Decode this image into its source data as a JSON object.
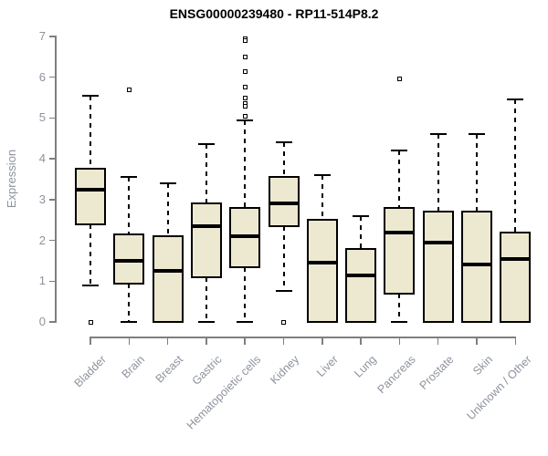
{
  "chart_data": {
    "type": "boxplot",
    "title": "ENSG00000239480 - RP11-514P8.2",
    "ylabel": "Expression",
    "xlabel": "",
    "ylim": [
      0,
      7
    ],
    "yticks": [
      0,
      1,
      2,
      3,
      4,
      5,
      6,
      7
    ],
    "grid": false,
    "legend": null,
    "colors": {
      "box_fill": "#ede8d0",
      "box_border": "#000000",
      "median": "#000000",
      "whisker": "#000000",
      "axis": "#7f7f7f",
      "labels": "#8d939d",
      "title": "#000000"
    },
    "categories": [
      "Bladder",
      "Brain",
      "Breast",
      "Gastric",
      "Hematopoietic cells",
      "Kidney",
      "Liver",
      "Lung",
      "Pancreas",
      "Prostate",
      "Skin",
      "Unknown / Other"
    ],
    "boxes": [
      {
        "category": "Bladder",
        "whisker_low": 0.9,
        "q1": 2.4,
        "median": 3.25,
        "q3": 3.75,
        "whisker_high": 5.55,
        "outliers": [
          0
        ]
      },
      {
        "category": "Brain",
        "whisker_low": 0,
        "q1": 0.95,
        "median": 1.5,
        "q3": 2.15,
        "whisker_high": 3.55,
        "outliers": [
          5.7
        ]
      },
      {
        "category": "Breast",
        "whisker_low": 0,
        "q1": 0,
        "median": 1.25,
        "q3": 2.1,
        "whisker_high": 3.4,
        "outliers": []
      },
      {
        "category": "Gastric",
        "whisker_low": 0,
        "q1": 1.1,
        "median": 2.35,
        "q3": 2.9,
        "whisker_high": 4.35,
        "outliers": []
      },
      {
        "category": "Hematopoietic cells",
        "whisker_low": 0,
        "q1": 1.35,
        "median": 2.1,
        "q3": 2.8,
        "whisker_high": 4.95,
        "outliers": [
          6.95,
          6.9,
          6.5,
          6.15,
          5.75,
          5.5,
          5.35,
          5.3,
          5.05
        ]
      },
      {
        "category": "Kidney",
        "whisker_low": 0.75,
        "q1": 2.35,
        "median": 2.9,
        "q3": 3.55,
        "whisker_high": 4.4,
        "outliers": [
          0
        ]
      },
      {
        "category": "Liver",
        "whisker_low": 0,
        "q1": 0,
        "median": 1.45,
        "q3": 2.5,
        "whisker_high": 3.6,
        "outliers": []
      },
      {
        "category": "Lung",
        "whisker_low": 0,
        "q1": 0,
        "median": 1.15,
        "q3": 1.8,
        "whisker_high": 2.6,
        "outliers": []
      },
      {
        "category": "Pancreas",
        "whisker_low": 0,
        "q1": 0.7,
        "median": 2.2,
        "q3": 2.8,
        "whisker_high": 4.2,
        "outliers": [
          5.95
        ]
      },
      {
        "category": "Prostate",
        "whisker_low": 0,
        "q1": 0,
        "median": 1.95,
        "q3": 2.7,
        "whisker_high": 4.6,
        "outliers": []
      },
      {
        "category": "Skin",
        "whisker_low": 0,
        "q1": 0,
        "median": 1.4,
        "q3": 2.7,
        "whisker_high": 4.6,
        "outliers": []
      },
      {
        "category": "Unknown / Other",
        "whisker_low": 0,
        "q1": 0,
        "median": 1.55,
        "q3": 2.2,
        "whisker_high": 5.45,
        "outliers": []
      }
    ]
  }
}
